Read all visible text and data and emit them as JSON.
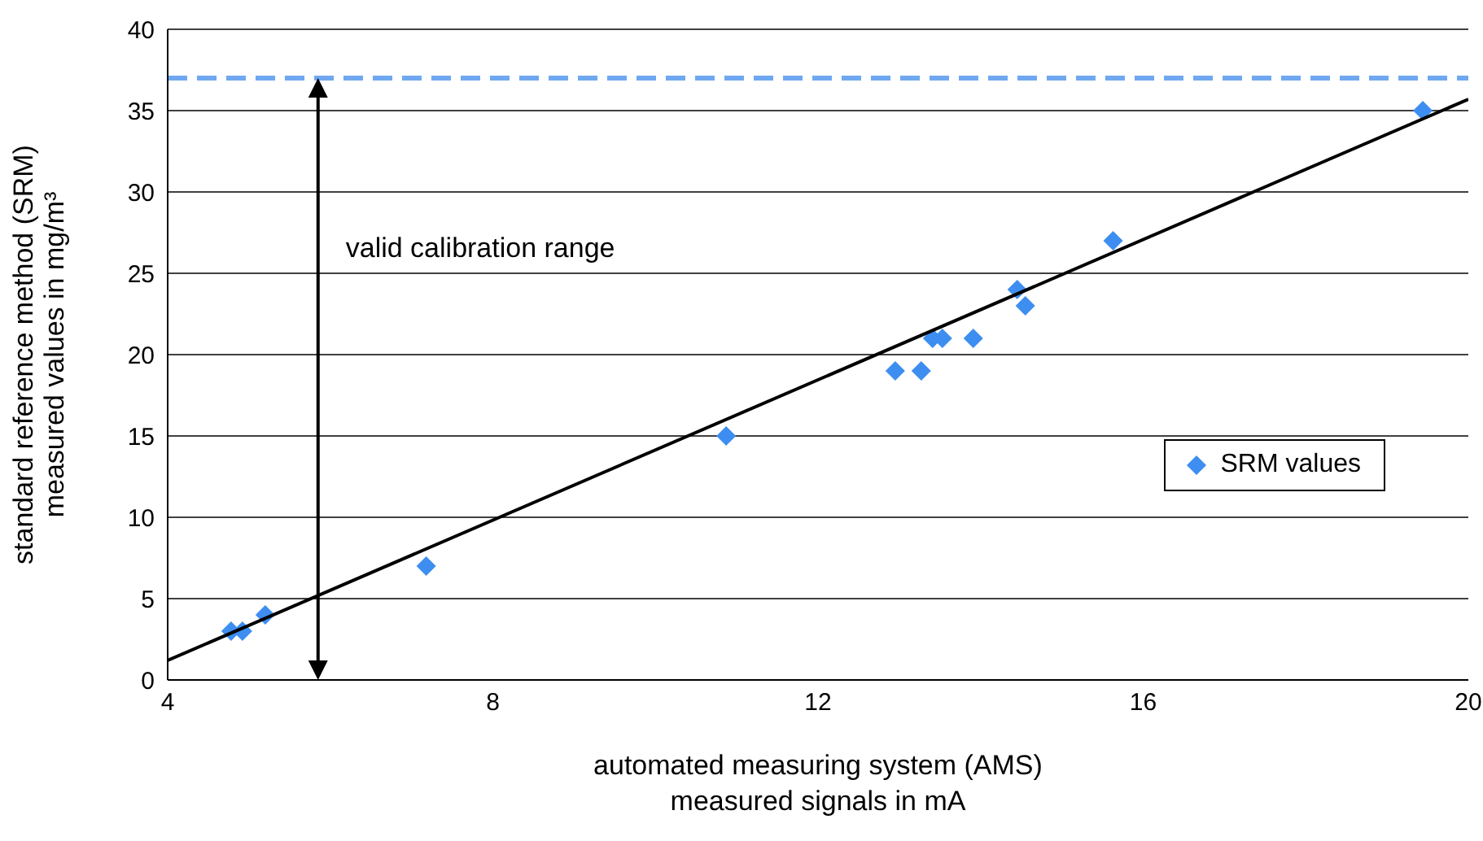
{
  "chart_data": {
    "type": "scatter",
    "xlabel": "automated measuring system (AMS) measured signals in mA",
    "ylabel": "standard reference method (SRM) measured values in mg/m³",
    "series": [
      {
        "name": "SRM values",
        "color": "#3d8ef0",
        "marker": "diamond",
        "x": [
          4.78,
          4.92,
          5.2,
          7.18,
          10.87,
          12.95,
          13.27,
          13.41,
          13.53,
          13.91,
          14.45,
          14.55,
          15.63,
          19.44
        ],
        "values": [
          3,
          3,
          4,
          7,
          15,
          19,
          19,
          21,
          21,
          21,
          24,
          23,
          27,
          35
        ]
      },
      {
        "type": "line",
        "color": "#000000",
        "marker": "none",
        "x": [
          4,
          20
        ],
        "values": [
          1.2,
          35.7
        ]
      }
    ],
    "xlim": [
      4,
      20
    ],
    "xticks": [
      4,
      8,
      12,
      16,
      20
    ],
    "ylim": [
      0,
      40
    ],
    "yticks": [
      0,
      5,
      10,
      15,
      20,
      25,
      30,
      35,
      40
    ],
    "grid": "y",
    "legend": "right",
    "ref_lines": [
      {
        "axis": "y",
        "value": 37,
        "color": "#6fa8f0",
        "line_style": "dashed"
      },
      {
        "axis": "x",
        "value": 5.85,
        "color": "#000000",
        "line_style": "solid",
        "label": "valid calibration range"
      }
    ]
  }
}
